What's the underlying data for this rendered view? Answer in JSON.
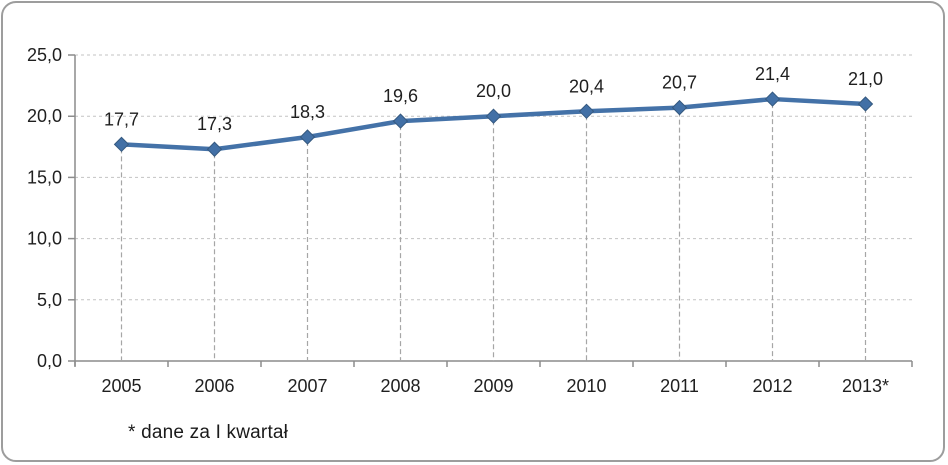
{
  "chart_data": {
    "type": "line",
    "categories": [
      "2005",
      "2006",
      "2007",
      "2008",
      "2009",
      "2010",
      "2011",
      "2012",
      "2013*"
    ],
    "values": [
      17.7,
      17.3,
      18.3,
      19.6,
      20.0,
      20.4,
      20.7,
      21.4,
      21.0
    ],
    "value_labels": [
      "17,7",
      "17,3",
      "18,3",
      "19,6",
      "20,0",
      "20,4",
      "20,7",
      "21,4",
      "21,0"
    ],
    "title": "",
    "xlabel": "",
    "ylabel": "",
    "ylim": [
      0,
      25
    ],
    "ytick_step": 5,
    "ytick_labels": [
      "0,0",
      "5,0",
      "10,0",
      "15,0",
      "20,0",
      "25,0"
    ],
    "grid": "horizontal dashed gridlines, dashed drop lines from points to x-axis",
    "legend_position": "none",
    "marker": "diamond",
    "footnote": "* dane za I kwartał",
    "colors": {
      "series_line": "#4472a8",
      "marker_fill": "#4270a6",
      "marker_stroke": "#35597f",
      "gridline": "#c3c3c3",
      "drop_line": "#a6a6a6",
      "axis": "#8c8c8c",
      "text": "#1f1f1f",
      "frame_border": "#9d9d9d",
      "background": "#ffffff"
    }
  }
}
